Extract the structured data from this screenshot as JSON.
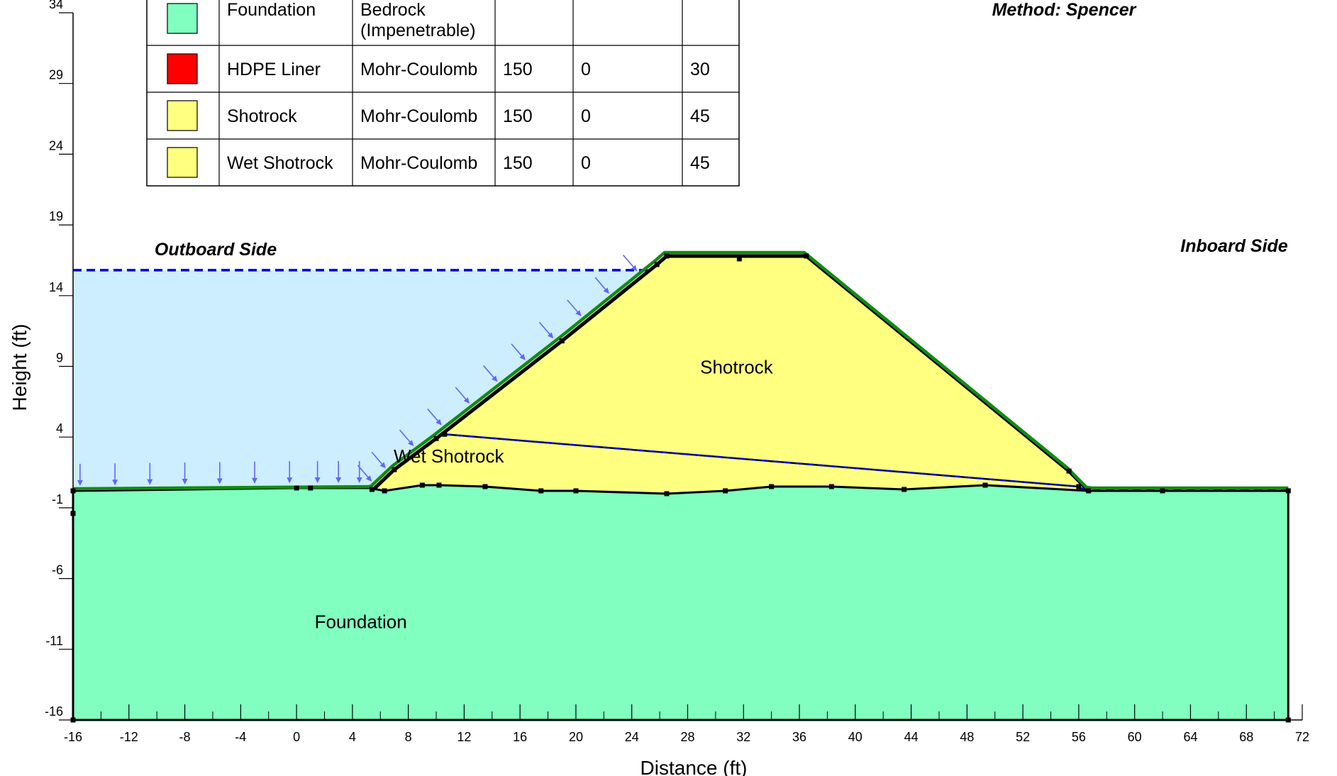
{
  "chart_data": {
    "type": "diagram",
    "xlabel": "Distance (ft)",
    "ylabel": "Height (ft)",
    "xlim": [
      -16,
      72
    ],
    "ylim": [
      -16,
      36
    ],
    "x_ticks": [
      -16,
      -12,
      -8,
      -4,
      0,
      4,
      8,
      12,
      16,
      20,
      24,
      28,
      32,
      36,
      40,
      44,
      48,
      52,
      56,
      60,
      64,
      68,
      72
    ],
    "y_ticks": [
      -16,
      -11,
      -6,
      -1,
      4,
      9,
      14,
      19,
      24,
      29,
      34
    ],
    "annotations": {
      "method": "Method: Spencer",
      "outboard": "Outboard Side",
      "inboard": "Inboard Side"
    },
    "region_labels": [
      {
        "text": "Shotrock",
        "x": 31.5,
        "y": 8.5
      },
      {
        "text": "Wet Shotrock",
        "x": 10.9,
        "y": 2.2
      },
      {
        "text": "Foundation",
        "x": 4.6,
        "y": -9.5
      }
    ],
    "colors": {
      "foundation": "#80FFC0",
      "shotrock": "#FFFF80",
      "hdpe": "#FF0000",
      "water": "#CCEEFF",
      "water_line": "#0000E0",
      "liner": "#138A13",
      "load_arrow": "#6464FF"
    },
    "materials_table": {
      "rows": [
        {
          "color": "#80FFC0",
          "name": "Foundation",
          "model": "Bedrock (Impenetrable)",
          "unit_weight": "",
          "cohesion": "",
          "phi": ""
        },
        {
          "color": "#FF0000",
          "name": "HDPE Liner",
          "model": "Mohr-Coulomb",
          "unit_weight": "150",
          "cohesion": "0",
          "phi": "30"
        },
        {
          "color": "#FFFF80",
          "name": "Shotrock",
          "model": "Mohr-Coulomb",
          "unit_weight": "150",
          "cohesion": "0",
          "phi": "45"
        },
        {
          "color": "#FFFF80",
          "name": "Wet Shotrock",
          "model": "Mohr-Coulomb",
          "unit_weight": "150",
          "cohesion": "0",
          "phi": "45"
        }
      ]
    },
    "geometry": {
      "ground_surface": [
        [
          -16,
          0.2
        ],
        [
          0,
          0.4
        ],
        [
          1,
          0.4
        ],
        [
          5.2,
          0.4
        ],
        [
          6.3,
          0.2
        ],
        [
          9,
          0.6
        ],
        [
          10.2,
          0.6
        ],
        [
          13.5,
          0.5
        ],
        [
          17.5,
          0.2
        ],
        [
          20,
          0.2
        ],
        [
          26.5,
          0.0
        ],
        [
          30.7,
          0.2
        ],
        [
          34,
          0.5
        ],
        [
          38.3,
          0.5
        ],
        [
          43.5,
          0.3
        ],
        [
          49.3,
          0.6
        ],
        [
          56.7,
          0.2
        ],
        [
          62,
          0.2
        ],
        [
          71,
          0.2
        ]
      ],
      "bottom": -16,
      "left_edge": -16,
      "right_edge": 71,
      "dam_outline": [
        [
          5.5,
          0.3
        ],
        [
          7,
          1.7
        ],
        [
          10,
          3.9
        ],
        [
          19,
          10.8
        ],
        [
          25.8,
          16.2
        ],
        [
          26.5,
          16.8
        ],
        [
          36.5,
          16.8
        ],
        [
          55.3,
          1.6
        ],
        [
          56.7,
          0.2
        ]
      ],
      "wet_boundary": [
        [
          10.6,
          4.2
        ],
        [
          56,
          0.5
        ]
      ],
      "water_surface_left": {
        "elevation": 15.8,
        "x_start": -16,
        "x_end": 25.2
      },
      "phreatic_right": {
        "elevation": 0.35,
        "x_start": 56,
        "x_end": 71
      },
      "slope_load_arrows_x": [
        5.5,
        6.5,
        8.5,
        10.5,
        12.5,
        14.5,
        16.5,
        18.5,
        20.5,
        22.5,
        24.5
      ],
      "flat_load_arrows_x": [
        -15.5,
        -13,
        -10.5,
        -8,
        -5.5,
        -3,
        -0.5,
        1.5,
        3,
        4.5
      ],
      "vertices": [
        [
          -16,
          0.2
        ],
        [
          -16,
          -1.4
        ],
        [
          0,
          0.4
        ],
        [
          1,
          0.4
        ],
        [
          5.4,
          0.3
        ],
        [
          6.3,
          0.2
        ],
        [
          7,
          1.7
        ],
        [
          9,
          0.6
        ],
        [
          10.2,
          0.6
        ],
        [
          10,
          3.9
        ],
        [
          10.6,
          4.2
        ],
        [
          13.5,
          0.5
        ],
        [
          17.5,
          0.2
        ],
        [
          19,
          10.8
        ],
        [
          20,
          0.2
        ],
        [
          25.8,
          16.2
        ],
        [
          26.5,
          16.8
        ],
        [
          26.5,
          0.0
        ],
        [
          31.7,
          16.6
        ],
        [
          30.7,
          0.2
        ],
        [
          34,
          0.5
        ],
        [
          36.5,
          16.8
        ],
        [
          38.3,
          0.5
        ],
        [
          43.5,
          0.3
        ],
        [
          49.3,
          0.6
        ],
        [
          55.3,
          1.6
        ],
        [
          56,
          0.5
        ],
        [
          56.7,
          0.2
        ],
        [
          62,
          0.2
        ],
        [
          71,
          0.2
        ],
        [
          -16,
          -16
        ],
        [
          71,
          -16
        ]
      ]
    }
  }
}
